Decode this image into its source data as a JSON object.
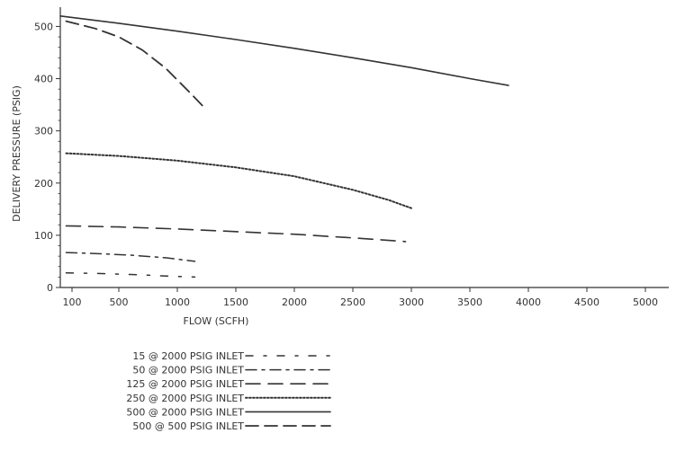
{
  "chart_data": {
    "type": "line",
    "xlabel": "FLOW (SCFH)",
    "ylabel": "DELIVERY PRESSURE (PSIG)",
    "xlim": [
      0,
      5200
    ],
    "ylim": [
      0,
      530
    ],
    "x_ticks": [
      100,
      500,
      1000,
      1500,
      2000,
      2500,
      3000,
      3500,
      4000,
      4500,
      5000
    ],
    "y_ticks": [
      0,
      100,
      200,
      300,
      400,
      500
    ],
    "grid": false,
    "legend_position": "bottom-left",
    "series": [
      {
        "name": "15 @ 2000 PSIG INLET",
        "style": "dash-dot-sparse",
        "color": "#333333",
        "points": [
          [
            50,
            28
          ],
          [
            300,
            27
          ],
          [
            600,
            25
          ],
          [
            900,
            22
          ],
          [
            1150,
            20
          ]
        ]
      },
      {
        "name": "50 @ 2000 PSIG INLET",
        "style": "dash-dot",
        "color": "#333333",
        "points": [
          [
            50,
            67
          ],
          [
            300,
            65
          ],
          [
            600,
            62
          ],
          [
            900,
            57
          ],
          [
            1150,
            50
          ]
        ]
      },
      {
        "name": "125 @ 2000 PSIG INLET",
        "style": "long-dash",
        "color": "#333333",
        "points": [
          [
            50,
            118
          ],
          [
            500,
            116
          ],
          [
            1000,
            112
          ],
          [
            1500,
            107
          ],
          [
            2000,
            102
          ],
          [
            2500,
            95
          ],
          [
            2950,
            88
          ]
        ]
      },
      {
        "name": "250 @ 2000 PSIG INLET",
        "style": "dotted",
        "color": "#333333",
        "points": [
          [
            50,
            257
          ],
          [
            500,
            252
          ],
          [
            1000,
            243
          ],
          [
            1500,
            230
          ],
          [
            2000,
            213
          ],
          [
            2500,
            187
          ],
          [
            2800,
            168
          ],
          [
            3000,
            152
          ]
        ]
      },
      {
        "name": "500 @ 2000 PSIG INLET",
        "style": "solid",
        "color": "#333333",
        "points": [
          [
            0,
            520
          ],
          [
            500,
            506
          ],
          [
            1000,
            491
          ],
          [
            1500,
            475
          ],
          [
            2000,
            458
          ],
          [
            2500,
            440
          ],
          [
            3000,
            421
          ],
          [
            3500,
            400
          ],
          [
            3830,
            387
          ]
        ]
      },
      {
        "name": "500 @ 500 PSIG INLET",
        "style": "dashed",
        "color": "#333333",
        "points": [
          [
            50,
            510
          ],
          [
            300,
            496
          ],
          [
            500,
            480
          ],
          [
            700,
            455
          ],
          [
            900,
            420
          ],
          [
            1100,
            375
          ],
          [
            1250,
            340
          ]
        ]
      }
    ]
  }
}
